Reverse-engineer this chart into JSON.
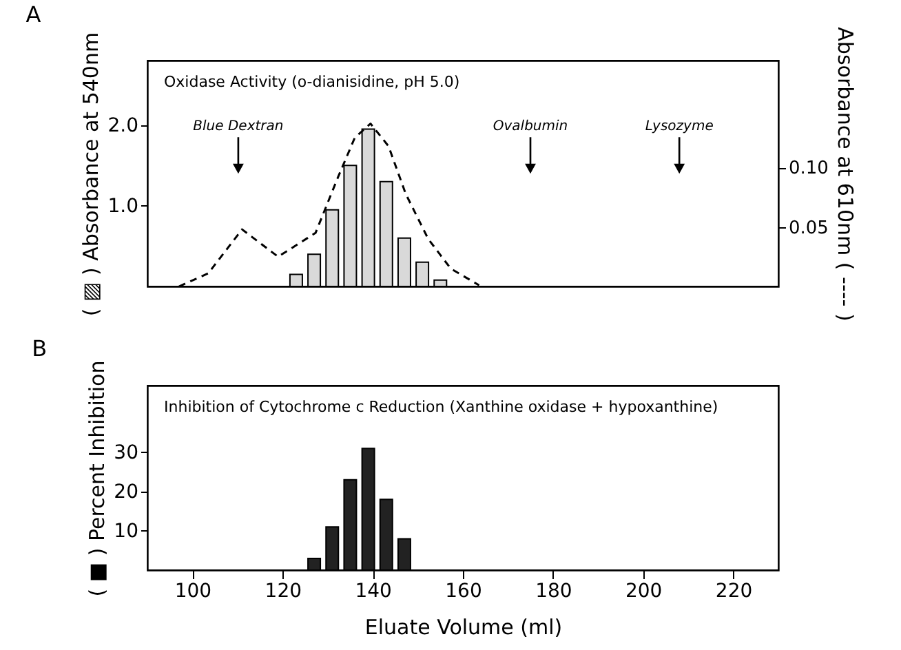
{
  "chart_data": [
    {
      "type": "bar",
      "title": "A",
      "ylabel": "( ▨ ) Absorbance at 540nm",
      "y2label": "Absorbance at 610nm ( ---- )",
      "annotations": [
        "Oxidase Activity (o-dianisidine, pH 5.0)",
        "Blue Dextran",
        "Ovalbumin",
        "Lysozyme"
      ],
      "x": [
        123,
        127,
        131,
        135,
        139,
        143,
        147,
        151,
        155
      ],
      "series": [
        {
          "color": "#d9d9d9",
          "values": [
            0.15,
            0.4,
            0.95,
            1.5,
            1.95,
            1.3,
            0.6,
            0.3,
            0.08
          ]
        },
        {
          "type": "line",
          "axis": "y2",
          "color": "#000000",
          "line_style": "dashed",
          "x": [
            97,
            103.5,
            111,
            119,
            127.3,
            132.3,
            136,
            139.5,
            143.5,
            147.3,
            152.3,
            157.3,
            163.6
          ],
          "values": [
            0,
            0.011,
            0.048,
            0.025,
            0.045,
            0.092,
            0.125,
            0.137,
            0.118,
            0.078,
            0.04,
            0.015,
            0.001
          ]
        }
      ],
      "xlim": [
        90,
        230
      ],
      "xticks": [
        100,
        120,
        140,
        160,
        180,
        200,
        220
      ],
      "ylim": [
        0,
        2.8
      ],
      "yticks": [
        {
          "value": 1,
          "label": "1.0"
        },
        {
          "value": 2,
          "label": "2.0"
        }
      ],
      "y2lim": [
        0,
        0.19
      ],
      "y2ticks": [
        {
          "value": 0.05,
          "label": "0.05"
        },
        {
          "value": 0.1,
          "label": "0.10"
        }
      ],
      "tick_labels": "y",
      "grid": false
    },
    {
      "type": "bar",
      "title": "B",
      "ylabel": "( ■ ) Percent Inhibition",
      "xlabel": "Eluate Volume (ml)",
      "annotations": [
        "Inhibition of Cytochrome c Reduction (Xanthine oxidase + hypoxanthine)"
      ],
      "x": [
        127,
        131,
        135,
        139,
        143,
        147
      ],
      "series": [
        {
          "color": "#222222",
          "values": [
            3,
            11,
            23,
            31,
            18,
            8
          ]
        }
      ],
      "xlim": [
        90,
        230
      ],
      "xticks": [
        100,
        120,
        140,
        160,
        180,
        200,
        220
      ],
      "ylim": [
        0,
        47
      ],
      "yticks": [
        10,
        20,
        30
      ],
      "grid": false
    }
  ]
}
